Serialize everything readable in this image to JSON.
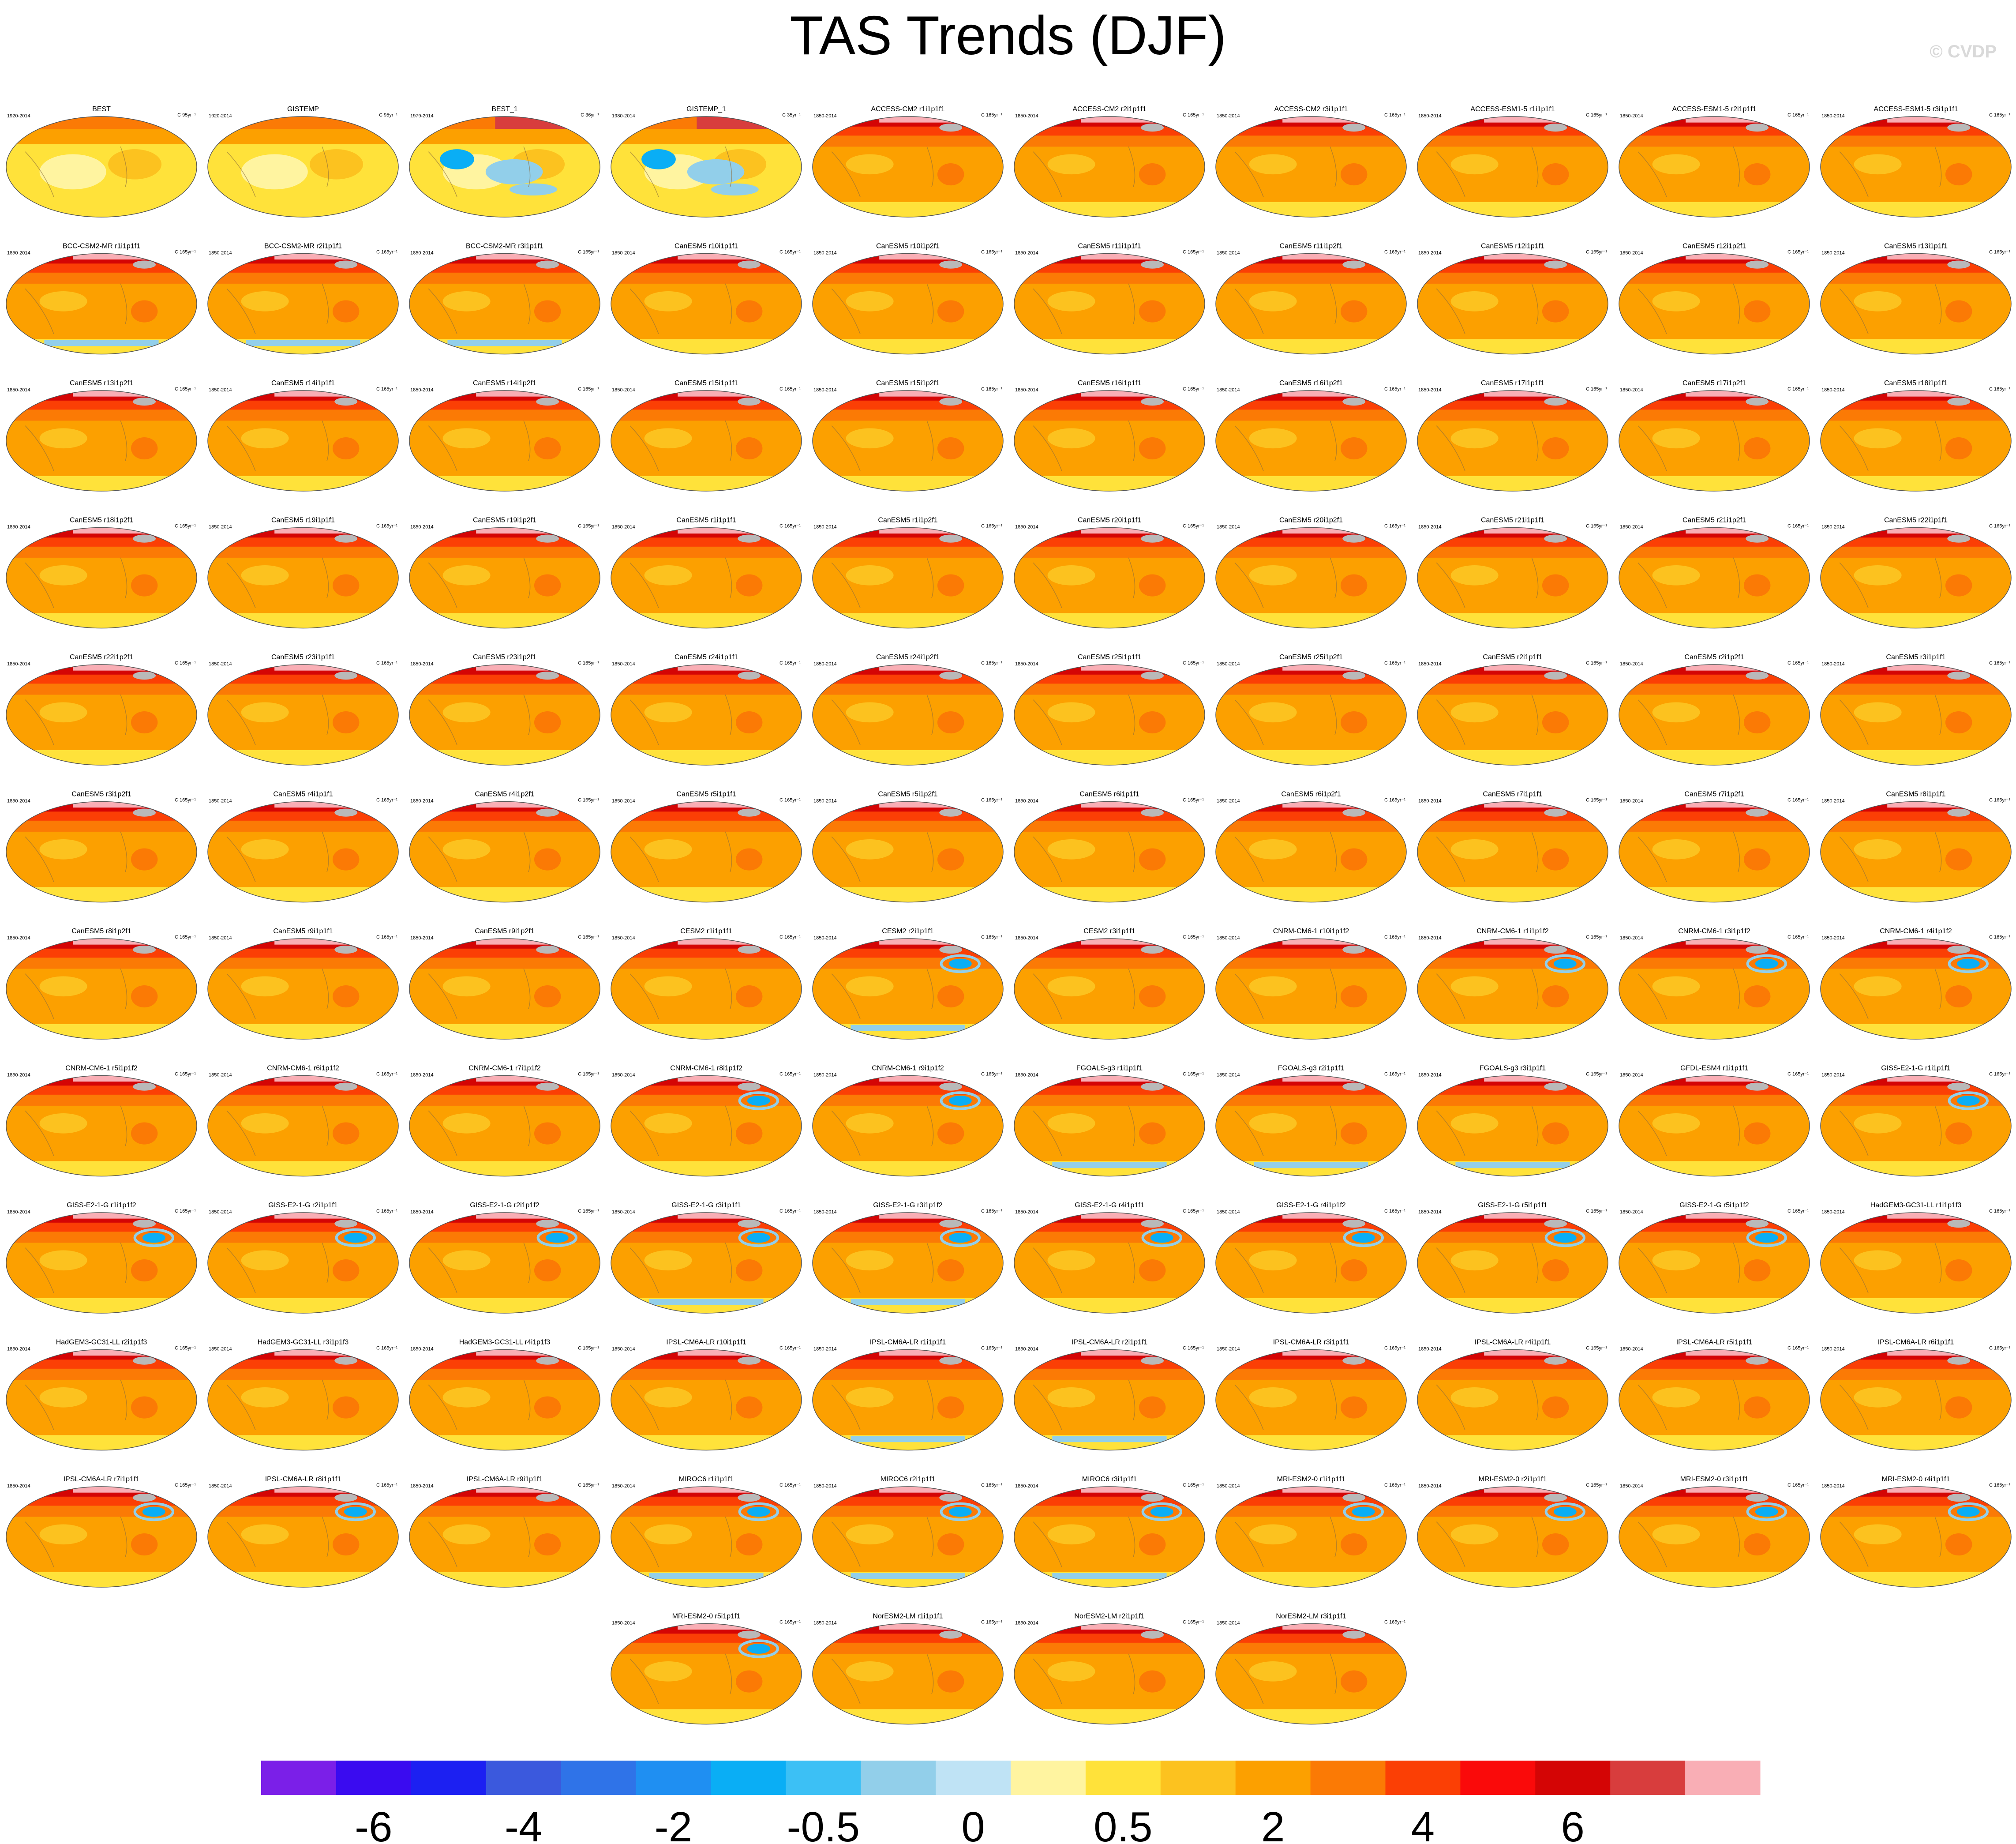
{
  "page": {
    "title": "TAS Trends (DJF)",
    "credit": "© CVDP"
  },
  "chart_data": {
    "type": "heatmap",
    "title": "TAS Trends (DJF)",
    "units_note": "panel units: C 95yr⁻¹ / C 36yr⁻¹ / C 35yr⁻¹ / C 165yr⁻¹",
    "colorbar": {
      "colors": [
        "#7b1fe8",
        "#3a0bf0",
        "#1c20f2",
        "#3b59dd",
        "#2f73e8",
        "#1f8ff2",
        "#0aaef5",
        "#3cc0f5",
        "#92cfea",
        "#bfe3f5",
        "#fff4a0",
        "#ffe23a",
        "#fcc21f",
        "#fca000",
        "#fb7a05",
        "#fb3f05",
        "#fa0a0a",
        "#d40505",
        "#d83d3d",
        "#f9aeb5"
      ],
      "tick_labels": [
        "-6",
        "-4",
        "-2",
        "-0.5",
        "0",
        "0.5",
        "2",
        "4",
        "6"
      ]
    },
    "panels": [
      {
        "name": "BEST",
        "period": "1920-2014",
        "units": "C 95yr⁻¹"
      },
      {
        "name": "GISTEMP",
        "period": "1920-2014",
        "units": "C 95yr⁻¹"
      },
      {
        "name": "BEST_1",
        "period": "1979-2014",
        "units": "C 36yr⁻¹"
      },
      {
        "name": "GISTEMP_1",
        "period": "1980-2014",
        "units": "C 35yr⁻¹"
      },
      {
        "name": "ACCESS-CM2 r1i1p1f1",
        "period": "1850-2014",
        "units": "C 165yr⁻¹"
      },
      {
        "name": "ACCESS-CM2 r2i1p1f1",
        "period": "1850-2014",
        "units": "C 165yr⁻¹"
      },
      {
        "name": "ACCESS-CM2 r3i1p1f1",
        "period": "1850-2014",
        "units": "C 165yr⁻¹"
      },
      {
        "name": "ACCESS-ESM1-5 r1i1p1f1",
        "period": "1850-2014",
        "units": "C 165yr⁻¹"
      },
      {
        "name": "ACCESS-ESM1-5 r2i1p1f1",
        "period": "1850-2014",
        "units": "C 165yr⁻¹"
      },
      {
        "name": "ACCESS-ESM1-5 r3i1p1f1",
        "period": "1850-2014",
        "units": "C 165yr⁻¹"
      },
      {
        "name": "BCC-CSM2-MR r1i1p1f1",
        "period": "1850-2014",
        "units": "C 165yr⁻¹"
      },
      {
        "name": "BCC-CSM2-MR r2i1p1f1",
        "period": "1850-2014",
        "units": "C 165yr⁻¹"
      },
      {
        "name": "BCC-CSM2-MR r3i1p1f1",
        "period": "1850-2014",
        "units": "C 165yr⁻¹"
      },
      {
        "name": "CanESM5 r10i1p1f1",
        "period": "1850-2014",
        "units": "C 165yr⁻¹"
      },
      {
        "name": "CanESM5 r10i1p2f1",
        "period": "1850-2014",
        "units": "C 165yr⁻¹"
      },
      {
        "name": "CanESM5 r11i1p1f1",
        "period": "1850-2014",
        "units": "C 165yr⁻¹"
      },
      {
        "name": "CanESM5 r11i1p2f1",
        "period": "1850-2014",
        "units": "C 165yr⁻¹"
      },
      {
        "name": "CanESM5 r12i1p1f1",
        "period": "1850-2014",
        "units": "C 165yr⁻¹"
      },
      {
        "name": "CanESM5 r12i1p2f1",
        "period": "1850-2014",
        "units": "C 165yr⁻¹"
      },
      {
        "name": "CanESM5 r13i1p1f1",
        "period": "1850-2014",
        "units": "C 165yr⁻¹"
      },
      {
        "name": "CanESM5 r13i1p2f1",
        "period": "1850-2014",
        "units": "C 165yr⁻¹"
      },
      {
        "name": "CanESM5 r14i1p1f1",
        "period": "1850-2014",
        "units": "C 165yr⁻¹"
      },
      {
        "name": "CanESM5 r14i1p2f1",
        "period": "1850-2014",
        "units": "C 165yr⁻¹"
      },
      {
        "name": "CanESM5 r15i1p1f1",
        "period": "1850-2014",
        "units": "C 165yr⁻¹"
      },
      {
        "name": "CanESM5 r15i1p2f1",
        "period": "1850-2014",
        "units": "C 165yr⁻¹"
      },
      {
        "name": "CanESM5 r16i1p1f1",
        "period": "1850-2014",
        "units": "C 165yr⁻¹"
      },
      {
        "name": "CanESM5 r16i1p2f1",
        "period": "1850-2014",
        "units": "C 165yr⁻¹"
      },
      {
        "name": "CanESM5 r17i1p1f1",
        "period": "1850-2014",
        "units": "C 165yr⁻¹"
      },
      {
        "name": "CanESM5 r17i1p2f1",
        "period": "1850-2014",
        "units": "C 165yr⁻¹"
      },
      {
        "name": "CanESM5 r18i1p1f1",
        "period": "1850-2014",
        "units": "C 165yr⁻¹"
      },
      {
        "name": "CanESM5 r18i1p2f1",
        "period": "1850-2014",
        "units": "C 165yr⁻¹"
      },
      {
        "name": "CanESM5 r19i1p1f1",
        "period": "1850-2014",
        "units": "C 165yr⁻¹"
      },
      {
        "name": "CanESM5 r19i1p2f1",
        "period": "1850-2014",
        "units": "C 165yr⁻¹"
      },
      {
        "name": "CanESM5 r1i1p1f1",
        "period": "1850-2014",
        "units": "C 165yr⁻¹"
      },
      {
        "name": "CanESM5 r1i1p2f1",
        "period": "1850-2014",
        "units": "C 165yr⁻¹"
      },
      {
        "name": "CanESM5 r20i1p1f1",
        "period": "1850-2014",
        "units": "C 165yr⁻¹"
      },
      {
        "name": "CanESM5 r20i1p2f1",
        "period": "1850-2014",
        "units": "C 165yr⁻¹"
      },
      {
        "name": "CanESM5 r21i1p1f1",
        "period": "1850-2014",
        "units": "C 165yr⁻¹"
      },
      {
        "name": "CanESM5 r21i1p2f1",
        "period": "1850-2014",
        "units": "C 165yr⁻¹"
      },
      {
        "name": "CanESM5 r22i1p1f1",
        "period": "1850-2014",
        "units": "C 165yr⁻¹"
      },
      {
        "name": "CanESM5 r22i1p2f1",
        "period": "1850-2014",
        "units": "C 165yr⁻¹"
      },
      {
        "name": "CanESM5 r23i1p1f1",
        "period": "1850-2014",
        "units": "C 165yr⁻¹"
      },
      {
        "name": "CanESM5 r23i1p2f1",
        "period": "1850-2014",
        "units": "C 165yr⁻¹"
      },
      {
        "name": "CanESM5 r24i1p1f1",
        "period": "1850-2014",
        "units": "C 165yr⁻¹"
      },
      {
        "name": "CanESM5 r24i1p2f1",
        "period": "1850-2014",
        "units": "C 165yr⁻¹"
      },
      {
        "name": "CanESM5 r25i1p1f1",
        "period": "1850-2014",
        "units": "C 165yr⁻¹"
      },
      {
        "name": "CanESM5 r25i1p2f1",
        "period": "1850-2014",
        "units": "C 165yr⁻¹"
      },
      {
        "name": "CanESM5 r2i1p1f1",
        "period": "1850-2014",
        "units": "C 165yr⁻¹"
      },
      {
        "name": "CanESM5 r2i1p2f1",
        "period": "1850-2014",
        "units": "C 165yr⁻¹"
      },
      {
        "name": "CanESM5 r3i1p1f1",
        "period": "1850-2014",
        "units": "C 165yr⁻¹"
      },
      {
        "name": "CanESM5 r3i1p2f1",
        "period": "1850-2014",
        "units": "C 165yr⁻¹"
      },
      {
        "name": "CanESM5 r4i1p1f1",
        "period": "1850-2014",
        "units": "C 165yr⁻¹"
      },
      {
        "name": "CanESM5 r4i1p2f1",
        "period": "1850-2014",
        "units": "C 165yr⁻¹"
      },
      {
        "name": "CanESM5 r5i1p1f1",
        "period": "1850-2014",
        "units": "C 165yr⁻¹"
      },
      {
        "name": "CanESM5 r5i1p2f1",
        "period": "1850-2014",
        "units": "C 165yr⁻¹"
      },
      {
        "name": "CanESM5 r6i1p1f1",
        "period": "1850-2014",
        "units": "C 165yr⁻¹"
      },
      {
        "name": "CanESM5 r6i1p2f1",
        "period": "1850-2014",
        "units": "C 165yr⁻¹"
      },
      {
        "name": "CanESM5 r7i1p1f1",
        "period": "1850-2014",
        "units": "C 165yr⁻¹"
      },
      {
        "name": "CanESM5 r7i1p2f1",
        "period": "1850-2014",
        "units": "C 165yr⁻¹"
      },
      {
        "name": "CanESM5 r8i1p1f1",
        "period": "1850-2014",
        "units": "C 165yr⁻¹"
      },
      {
        "name": "CanESM5 r8i1p2f1",
        "period": "1850-2014",
        "units": "C 165yr⁻¹"
      },
      {
        "name": "CanESM5 r9i1p1f1",
        "period": "1850-2014",
        "units": "C 165yr⁻¹"
      },
      {
        "name": "CanESM5 r9i1p2f1",
        "period": "1850-2014",
        "units": "C 165yr⁻¹"
      },
      {
        "name": "CESM2 r1i1p1f1",
        "period": "1850-2014",
        "units": "C 165yr⁻¹"
      },
      {
        "name": "CESM2 r2i1p1f1",
        "period": "1850-2014",
        "units": "C 165yr⁻¹"
      },
      {
        "name": "CESM2 r3i1p1f1",
        "period": "1850-2014",
        "units": "C 165yr⁻¹"
      },
      {
        "name": "CNRM-CM6-1 r10i1p1f2",
        "period": "1850-2014",
        "units": "C 165yr⁻¹"
      },
      {
        "name": "CNRM-CM6-1 r1i1p1f2",
        "period": "1850-2014",
        "units": "C 165yr⁻¹"
      },
      {
        "name": "CNRM-CM6-1 r3i1p1f2",
        "period": "1850-2014",
        "units": "C 165yr⁻¹"
      },
      {
        "name": "CNRM-CM6-1 r4i1p1f2",
        "period": "1850-2014",
        "units": "C 165yr⁻¹"
      },
      {
        "name": "CNRM-CM6-1 r5i1p1f2",
        "period": "1850-2014",
        "units": "C 165yr⁻¹"
      },
      {
        "name": "CNRM-CM6-1 r6i1p1f2",
        "period": "1850-2014",
        "units": "C 165yr⁻¹"
      },
      {
        "name": "CNRM-CM6-1 r7i1p1f2",
        "period": "1850-2014",
        "units": "C 165yr⁻¹"
      },
      {
        "name": "CNRM-CM6-1 r8i1p1f2",
        "period": "1850-2014",
        "units": "C 165yr⁻¹"
      },
      {
        "name": "CNRM-CM6-1 r9i1p1f2",
        "period": "1850-2014",
        "units": "C 165yr⁻¹"
      },
      {
        "name": "FGOALS-g3 r1i1p1f1",
        "period": "1850-2014",
        "units": "C 165yr⁻¹"
      },
      {
        "name": "FGOALS-g3 r2i1p1f1",
        "period": "1850-2014",
        "units": "C 165yr⁻¹"
      },
      {
        "name": "FGOALS-g3 r3i1p1f1",
        "period": "1850-2014",
        "units": "C 165yr⁻¹"
      },
      {
        "name": "GFDL-ESM4 r1i1p1f1",
        "period": "1850-2014",
        "units": "C 165yr⁻¹"
      },
      {
        "name": "GISS-E2-1-G r1i1p1f1",
        "period": "1850-2014",
        "units": "C 165yr⁻¹"
      },
      {
        "name": "GISS-E2-1-G r1i1p1f2",
        "period": "1850-2014",
        "units": "C 165yr⁻¹"
      },
      {
        "name": "GISS-E2-1-G r2i1p1f1",
        "period": "1850-2014",
        "units": "C 165yr⁻¹"
      },
      {
        "name": "GISS-E2-1-G r2i1p1f2",
        "period": "1850-2014",
        "units": "C 165yr⁻¹"
      },
      {
        "name": "GISS-E2-1-G r3i1p1f1",
        "period": "1850-2014",
        "units": "C 165yr⁻¹"
      },
      {
        "name": "GISS-E2-1-G r3i1p1f2",
        "period": "1850-2014",
        "units": "C 165yr⁻¹"
      },
      {
        "name": "GISS-E2-1-G r4i1p1f1",
        "period": "1850-2014",
        "units": "C 165yr⁻¹"
      },
      {
        "name": "GISS-E2-1-G r4i1p1f2",
        "period": "1850-2014",
        "units": "C 165yr⁻¹"
      },
      {
        "name": "GISS-E2-1-G r5i1p1f1",
        "period": "1850-2014",
        "units": "C 165yr⁻¹"
      },
      {
        "name": "GISS-E2-1-G r5i1p1f2",
        "period": "1850-2014",
        "units": "C 165yr⁻¹"
      },
      {
        "name": "HadGEM3-GC31-LL r1i1p1f3",
        "period": "1850-2014",
        "units": "C 165yr⁻¹"
      },
      {
        "name": "HadGEM3-GC31-LL r2i1p1f3",
        "period": "1850-2014",
        "units": "C 165yr⁻¹"
      },
      {
        "name": "HadGEM3-GC31-LL r3i1p1f3",
        "period": "1850-2014",
        "units": "C 165yr⁻¹"
      },
      {
        "name": "HadGEM3-GC31-LL r4i1p1f3",
        "period": "1850-2014",
        "units": "C 165yr⁻¹"
      },
      {
        "name": "IPSL-CM6A-LR r10i1p1f1",
        "period": "1850-2014",
        "units": "C 165yr⁻¹"
      },
      {
        "name": "IPSL-CM6A-LR r1i1p1f1",
        "period": "1850-2014",
        "units": "C 165yr⁻¹"
      },
      {
        "name": "IPSL-CM6A-LR r2i1p1f1",
        "period": "1850-2014",
        "units": "C 165yr⁻¹"
      },
      {
        "name": "IPSL-CM6A-LR r3i1p1f1",
        "period": "1850-2014",
        "units": "C 165yr⁻¹"
      },
      {
        "name": "IPSL-CM6A-LR r4i1p1f1",
        "period": "1850-2014",
        "units": "C 165yr⁻¹"
      },
      {
        "name": "IPSL-CM6A-LR r5i1p1f1",
        "period": "1850-2014",
        "units": "C 165yr⁻¹"
      },
      {
        "name": "IPSL-CM6A-LR r6i1p1f1",
        "period": "1850-2014",
        "units": "C 165yr⁻¹"
      },
      {
        "name": "IPSL-CM6A-LR r7i1p1f1",
        "period": "1850-2014",
        "units": "C 165yr⁻¹"
      },
      {
        "name": "IPSL-CM6A-LR r8i1p1f1",
        "period": "1850-2014",
        "units": "C 165yr⁻¹"
      },
      {
        "name": "IPSL-CM6A-LR r9i1p1f1",
        "period": "1850-2014",
        "units": "C 165yr⁻¹"
      },
      {
        "name": "MIROC6 r1i1p1f1",
        "period": "1850-2014",
        "units": "C 165yr⁻¹"
      },
      {
        "name": "MIROC6 r2i1p1f1",
        "period": "1850-2014",
        "units": "C 165yr⁻¹"
      },
      {
        "name": "MIROC6 r3i1p1f1",
        "period": "1850-2014",
        "units": "C 165yr⁻¹"
      },
      {
        "name": "MRI-ESM2-0 r1i1p1f1",
        "period": "1850-2014",
        "units": "C 165yr⁻¹"
      },
      {
        "name": "MRI-ESM2-0 r2i1p1f1",
        "period": "1850-2014",
        "units": "C 165yr⁻¹"
      },
      {
        "name": "MRI-ESM2-0 r3i1p1f1",
        "period": "1850-2014",
        "units": "C 165yr⁻¹"
      },
      {
        "name": "MRI-ESM2-0 r4i1p1f1",
        "period": "1850-2014",
        "units": "C 165yr⁻¹"
      },
      {
        "name": "MRI-ESM2-0 r5i1p1f1",
        "period": "1850-2014",
        "units": "C 165yr⁻¹"
      },
      {
        "name": "NorESM2-LM r1i1p1f1",
        "period": "1850-2014",
        "units": "C 165yr⁻¹"
      },
      {
        "name": "NorESM2-LM r2i1p1f1",
        "period": "1850-2014",
        "units": "C 165yr⁻¹"
      },
      {
        "name": "NorESM2-LM r3i1p1f1",
        "period": "1850-2014",
        "units": "C 165yr⁻¹"
      }
    ]
  }
}
